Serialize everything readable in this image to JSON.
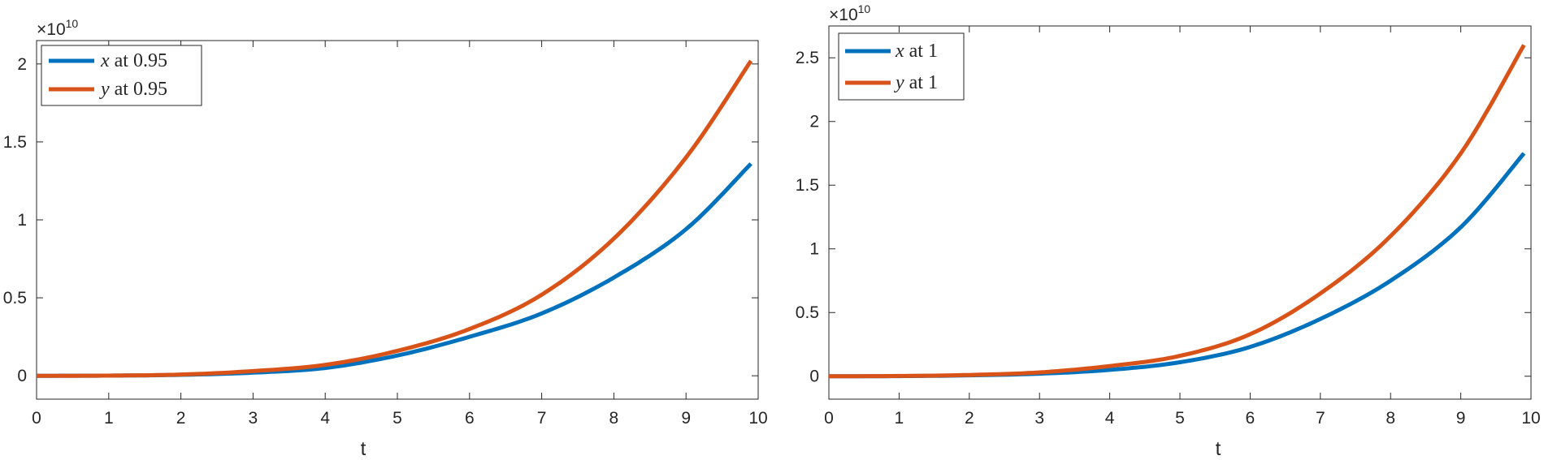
{
  "chart_data": [
    {
      "type": "line",
      "title": "",
      "xlabel": "t",
      "ylabel": "",
      "exponent_label": "×10",
      "exponent_power": "10",
      "xlim": [
        0,
        10
      ],
      "ylim": [
        -0.15,
        2.15
      ],
      "y_scale_factor": 10000000000.0,
      "xticks": [
        0,
        1,
        2,
        3,
        4,
        5,
        6,
        7,
        8,
        9,
        10
      ],
      "yticks": [
        0,
        0.5,
        1,
        1.5,
        2
      ],
      "ytick_labels": [
        "0",
        "0.5",
        "1",
        "1.5",
        "2"
      ],
      "grid": false,
      "legend_position": "top-left",
      "x": [
        0,
        1,
        2,
        3,
        4,
        5,
        6,
        7,
        8,
        9,
        9.9
      ],
      "series": [
        {
          "name": "x at 0.95",
          "legend_var": "x",
          "legend_rest": " at 0.95",
          "color": "#0072BD",
          "values": [
            0,
            0.001,
            0.006,
            0.02,
            0.05,
            0.13,
            0.25,
            0.4,
            0.63,
            0.94,
            1.36
          ]
        },
        {
          "name": "y at 0.95",
          "legend_var": "y",
          "legend_rest": " at 0.95",
          "color": "#D95319",
          "values": [
            0,
            0.001,
            0.008,
            0.03,
            0.07,
            0.16,
            0.3,
            0.52,
            0.88,
            1.4,
            2.02
          ]
        }
      ]
    },
    {
      "type": "line",
      "title": "",
      "xlabel": "t",
      "ylabel": "",
      "exponent_label": "×10",
      "exponent_power": "10",
      "xlim": [
        0,
        10
      ],
      "ylim": [
        -0.18,
        2.75
      ],
      "y_scale_factor": 10000000000.0,
      "xticks": [
        0,
        1,
        2,
        3,
        4,
        5,
        6,
        7,
        8,
        9,
        10
      ],
      "yticks": [
        0,
        0.5,
        1,
        1.5,
        2,
        2.5
      ],
      "ytick_labels": [
        "0",
        "0.5",
        "1",
        "1.5",
        "2",
        "2.5"
      ],
      "grid": false,
      "legend_position": "top-left",
      "x": [
        0,
        1,
        2,
        3,
        4,
        5,
        6,
        7,
        8,
        9,
        9.9
      ],
      "series": [
        {
          "name": "x at 1",
          "legend_var": "x",
          "legend_rest": " at 1",
          "color": "#0072BD",
          "values": [
            0,
            0.001,
            0.007,
            0.02,
            0.05,
            0.11,
            0.23,
            0.45,
            0.75,
            1.17,
            1.75
          ]
        },
        {
          "name": "y at 1",
          "legend_var": "y",
          "legend_rest": " at 1",
          "color": "#D95319",
          "values": [
            0,
            0.002,
            0.01,
            0.03,
            0.08,
            0.16,
            0.33,
            0.65,
            1.1,
            1.75,
            2.6
          ]
        }
      ]
    }
  ]
}
